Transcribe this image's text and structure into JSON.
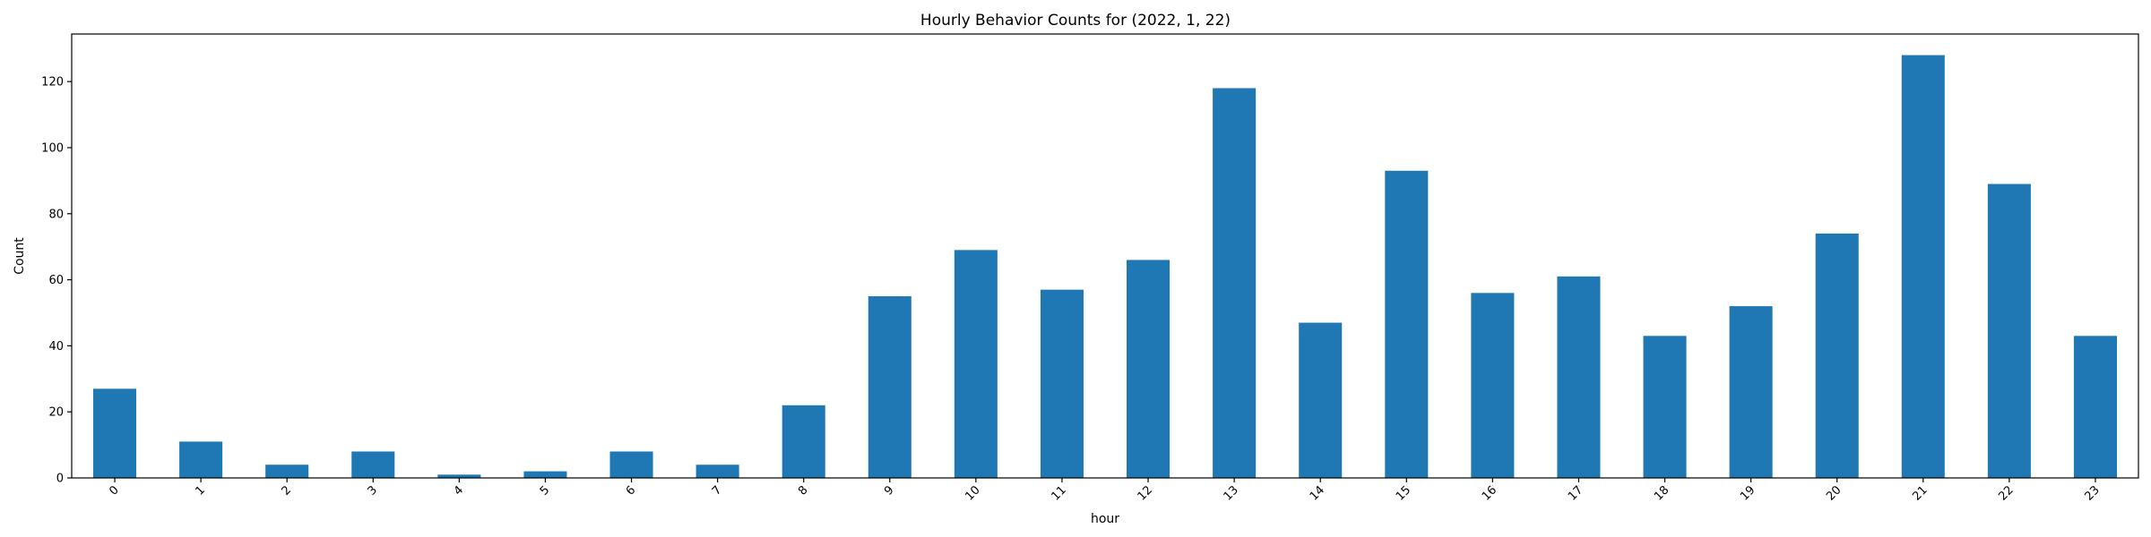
{
  "chart_data": {
    "type": "bar",
    "title": "Hourly Behavior Counts for (2022, 1, 22)",
    "xlabel": "hour",
    "ylabel": "Count",
    "categories": [
      "0",
      "1",
      "2",
      "3",
      "4",
      "5",
      "6",
      "7",
      "8",
      "9",
      "10",
      "11",
      "12",
      "13",
      "14",
      "15",
      "16",
      "17",
      "18",
      "19",
      "20",
      "21",
      "22",
      "23"
    ],
    "values": [
      27,
      11,
      4,
      8,
      1,
      2,
      8,
      4,
      22,
      55,
      69,
      57,
      66,
      118,
      47,
      93,
      56,
      61,
      43,
      52,
      74,
      128,
      89,
      43
    ],
    "ylim": [
      0,
      134.4
    ],
    "yticks": [
      0,
      20,
      40,
      60,
      80,
      100,
      120
    ],
    "color": "#1f77b4",
    "grid": false,
    "legend": false,
    "xtick_rotation": 45
  }
}
